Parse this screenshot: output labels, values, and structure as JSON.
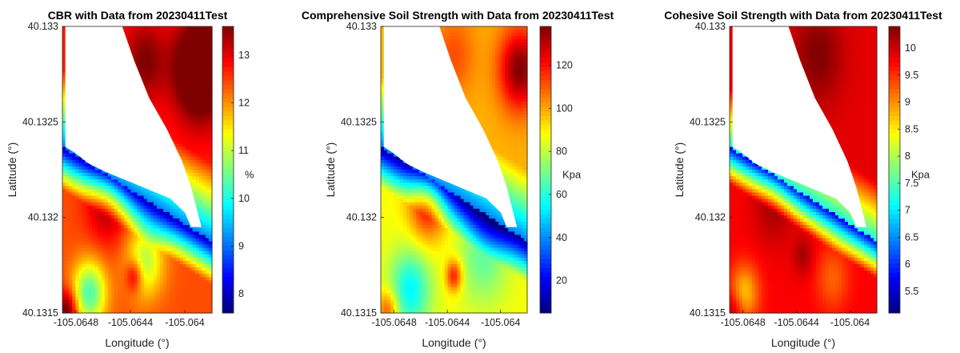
{
  "figure": {
    "background": "#ffffff"
  },
  "chart_data": [
    {
      "type": "heatmap",
      "title": "CBR with Data from 20230411Test",
      "xlabel": "Longitude (°)",
      "ylabel": "Latitude (°)",
      "xlim": [
        -105.0649,
        -105.0638
      ],
      "ylim": [
        40.1315,
        40.133
      ],
      "x_ticks": [
        -105.0648,
        -105.0644,
        -105.064
      ],
      "x_tick_labels": [
        "-105.0648",
        "-105.0644",
        "-105.064"
      ],
      "y_ticks": [
        40.1315,
        40.132,
        40.1325,
        40.133
      ],
      "y_tick_labels": [
        "40.1315",
        "40.132",
        "40.1325",
        "40.133"
      ],
      "colorbar": {
        "label": "% ",
        "min": 7.6,
        "max": 13.6,
        "ticks": [
          8,
          9,
          10,
          11,
          12,
          13
        ]
      },
      "colormap": "jet",
      "value_range": [
        7.6,
        13.6
      ],
      "masked_region": "white no-data wedge in upper left"
    },
    {
      "type": "heatmap",
      "title": "Comprehensive Soil Strength with Data from 20230411Test",
      "xlabel": "Longitude (°)",
      "ylabel": "Latitude (°)",
      "xlim": [
        -105.0649,
        -105.0638
      ],
      "ylim": [
        40.1315,
        40.133
      ],
      "x_ticks": [
        -105.0648,
        -105.0644,
        -105.064
      ],
      "x_tick_labels": [
        "-105.0648",
        "-105.0644",
        "-105.064"
      ],
      "y_ticks": [
        40.1315,
        40.132,
        40.1325,
        40.133
      ],
      "y_tick_labels": [
        "40.1315",
        "40.132",
        "40.1325",
        "40.133"
      ],
      "colorbar": {
        "label": "Kpa",
        "min": 5,
        "max": 138,
        "ticks": [
          20,
          40,
          60,
          80,
          100,
          120
        ]
      },
      "colormap": "jet",
      "value_range": [
        5,
        138
      ],
      "masked_region": "white no-data wedge in upper left"
    },
    {
      "type": "heatmap",
      "title": "Cohesive Soil Strength with Data from 20230411Test",
      "xlabel": "Longitude (°)",
      "ylabel": "Latitude (°)",
      "xlim": [
        -105.0649,
        -105.0638
      ],
      "ylim": [
        40.1315,
        40.133
      ],
      "x_ticks": [
        -105.0648,
        -105.0644,
        -105.064
      ],
      "x_tick_labels": [
        "-105.0648",
        "-105.0644",
        "-105.064"
      ],
      "y_ticks": [
        40.1315,
        40.132,
        40.1325,
        40.133
      ],
      "y_tick_labels": [
        "40.1315",
        "40.132",
        "40.1325",
        "40.133"
      ],
      "colorbar": {
        "label": "Kpa",
        "min": 5.1,
        "max": 10.4,
        "ticks": [
          5.5,
          6,
          6.5,
          7,
          7.5,
          8,
          8.5,
          9,
          9.5,
          10
        ],
        "tick_labels": [
          "5.5",
          "6",
          "6.5",
          "7",
          "7.5",
          "8",
          "8.5",
          "9",
          "9.5",
          "10"
        ]
      },
      "colormap": "jet",
      "value_range": [
        5.1,
        10.4
      ],
      "masked_region": "white no-data wedge in upper left"
    }
  ]
}
